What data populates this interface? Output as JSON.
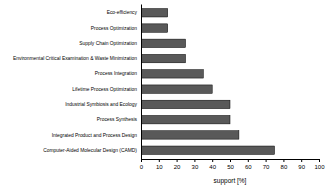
{
  "chart_data": {
    "type": "bar",
    "orientation": "horizontal",
    "x_label": "support [%]",
    "categories": [
      "Eco-efficiency",
      "Process Optimization",
      "Supply Chain Optimization",
      "Environmental Critical Examination & Waste Minimization",
      "Process Integration",
      "Lifetime Process Optimization",
      "Industrial Symbiosis and Ecology",
      "Process Synthesis",
      "Integrated Product and Process Design",
      "Computer-Aided Molecular Design (CAMD)"
    ],
    "values": [
      15,
      15,
      25,
      25,
      35,
      40,
      50,
      50,
      55,
      75
    ],
    "color": "#595959",
    "xlim": [
      0,
      100
    ],
    "xticks": [
      0,
      10,
      20,
      30,
      40,
      50,
      60,
      70,
      80,
      90,
      100
    ],
    "grid": false
  }
}
